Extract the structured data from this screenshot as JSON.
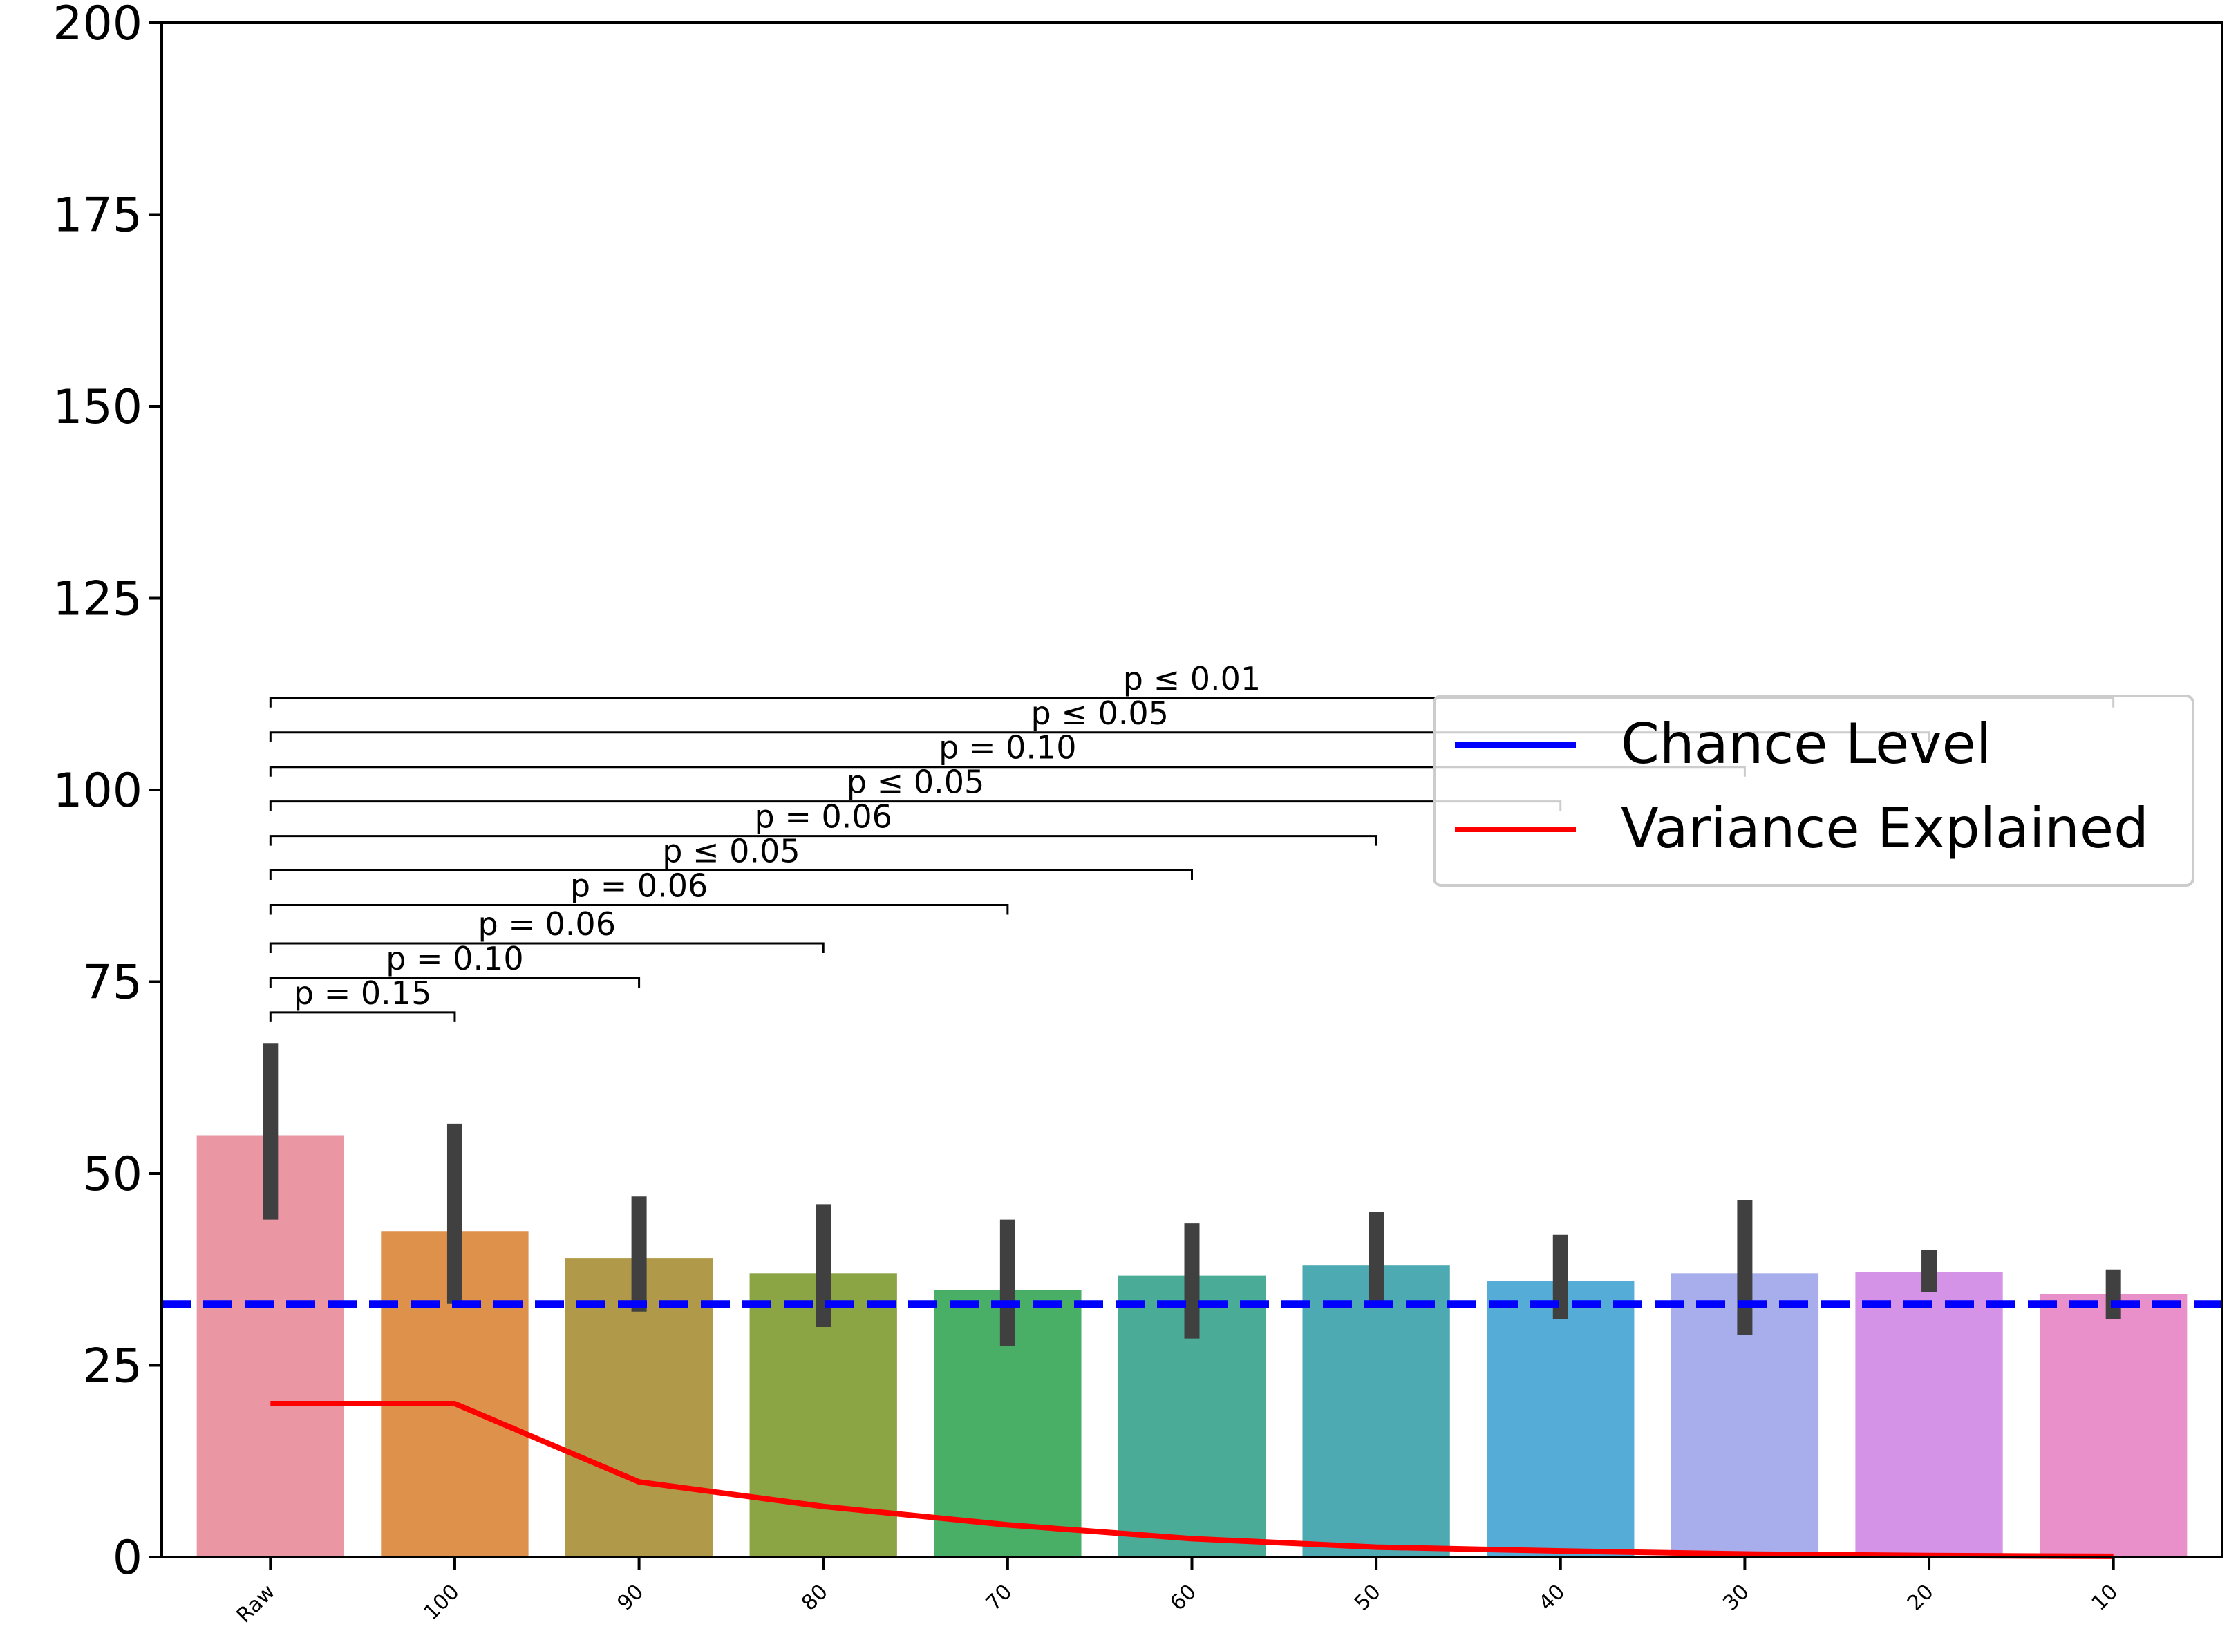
{
  "chart_data": {
    "type": "bar",
    "title": "",
    "xlabel": "",
    "ylabel": "",
    "ylim": [
      0,
      200
    ],
    "yticks": [
      0,
      25,
      50,
      75,
      100,
      125,
      150,
      175,
      200
    ],
    "categories": [
      "Raw",
      "100",
      "90",
      "80",
      "70",
      "60",
      "50",
      "40",
      "30",
      "20",
      "10"
    ],
    "values": [
      55,
      42.5,
      39,
      37,
      34.8,
      36.7,
      38,
      36,
      37,
      37.2,
      34.3
    ],
    "error_low": [
      44,
      33,
      32,
      30,
      27.5,
      28.5,
      33,
      31,
      29,
      34.5,
      31
    ],
    "error_high": [
      67,
      56.5,
      47,
      46,
      44,
      43.5,
      45,
      42,
      46.5,
      40,
      37.5
    ],
    "bar_colors": [
      "#ea96a3",
      "#de914a",
      "#b09a4a",
      "#8ba444",
      "#49ae66",
      "#4aac96",
      "#4daab3",
      "#55add7",
      "#a8adeb",
      "#d593e8",
      "#e98fca"
    ],
    "error_color": "#404040",
    "lines": [
      {
        "name": "Chance Level",
        "type": "hline",
        "y": 33,
        "color": "#0000ff",
        "style": "dashed"
      },
      {
        "name": "Variance Explained",
        "color": "#ff0000",
        "values": [
          20,
          20,
          9.8,
          6.6,
          4.2,
          2.4,
          1.3,
          0.8,
          0.4,
          0.2,
          0.1
        ]
      }
    ],
    "legend": {
      "position": "right",
      "entries": [
        {
          "label": "Chance Level",
          "color": "#0000ff"
        },
        {
          "label": "Variance Explained",
          "color": "#ff0000"
        }
      ]
    },
    "significance_brackets": [
      {
        "from": 0,
        "to": 1,
        "label": "p = 0.15",
        "y": 71
      },
      {
        "from": 0,
        "to": 2,
        "label": "p = 0.10",
        "y": 75.5
      },
      {
        "from": 0,
        "to": 3,
        "label": "p = 0.06",
        "y": 80
      },
      {
        "from": 0,
        "to": 4,
        "label": "p = 0.06",
        "y": 85
      },
      {
        "from": 0,
        "to": 5,
        "label": "p ≤ 0.05",
        "y": 89.5
      },
      {
        "from": 0,
        "to": 6,
        "label": "p = 0.06",
        "y": 94
      },
      {
        "from": 0,
        "to": 7,
        "label": "p ≤ 0.05",
        "y": 98.5
      },
      {
        "from": 0,
        "to": 8,
        "label": "p = 0.10",
        "y": 103
      },
      {
        "from": 0,
        "to": 9,
        "label": "p ≤ 0.05",
        "y": 107.5
      },
      {
        "from": 0,
        "to": 10,
        "label": "p ≤ 0.01",
        "y": 112
      }
    ],
    "grid": false
  }
}
